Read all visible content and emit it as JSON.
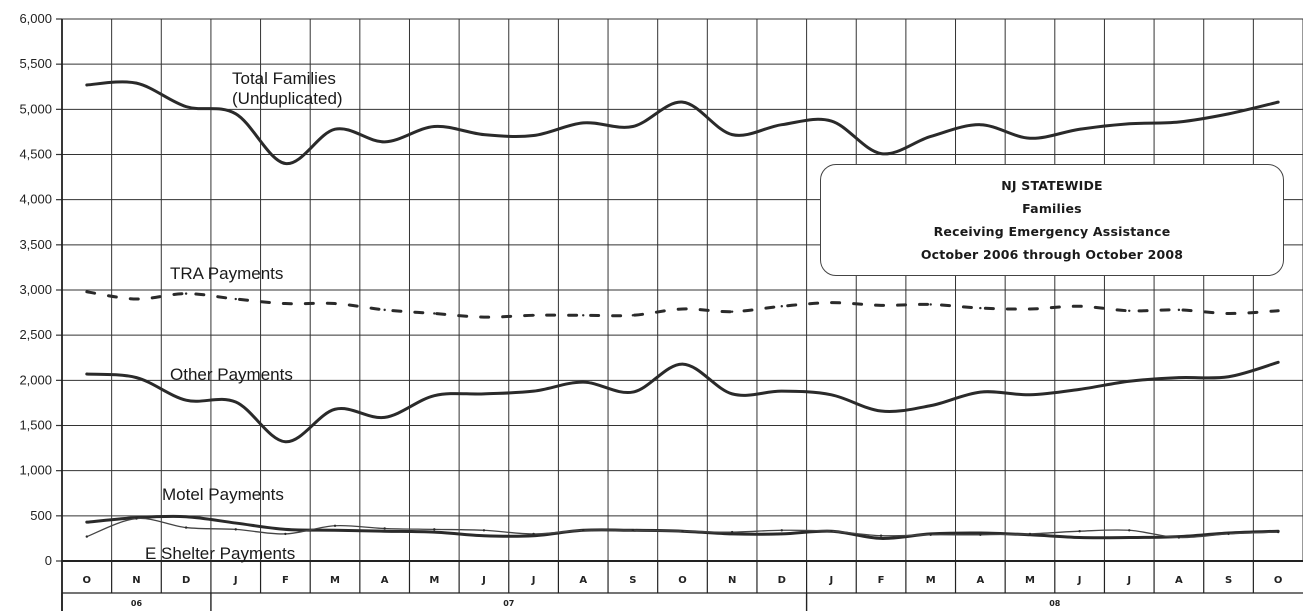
{
  "chart_data": {
    "type": "line",
    "title_lines": [
      "NJ STATEWIDE",
      "Families",
      "Receiving Emergency Assistance",
      "October 2006 through October 2008"
    ],
    "ylim": [
      0,
      6000
    ],
    "yticks": [
      "0",
      "500",
      "1,000",
      "1,500",
      "2,000",
      "2,500",
      "3,000",
      "3,500",
      "4,000",
      "4,500",
      "5,000",
      "5,500",
      "6,000"
    ],
    "categories": [
      "O",
      "N",
      "D",
      "J",
      "F",
      "M",
      "A",
      "M",
      "J",
      "J",
      "A",
      "S",
      "O",
      "N",
      "D",
      "J",
      "F",
      "M",
      "A",
      "M",
      "J",
      "J",
      "A",
      "S",
      "O"
    ],
    "years": [
      "06",
      "07",
      "08"
    ],
    "grid": true,
    "series": [
      {
        "name": "Total Families\n(Unduplicated)",
        "style": "solid",
        "values": [
          5270,
          5290,
          5030,
          4950,
          4400,
          4780,
          4640,
          4810,
          4720,
          4710,
          4850,
          4810,
          5080,
          4720,
          4830,
          4870,
          4510,
          4700,
          4830,
          4680,
          4780,
          4840,
          4860,
          4950,
          5080
        ]
      },
      {
        "name": "TRA Payments",
        "style": "dashed",
        "values": [
          2980,
          2900,
          2960,
          2900,
          2850,
          2850,
          2780,
          2740,
          2700,
          2720,
          2720,
          2720,
          2790,
          2760,
          2820,
          2860,
          2830,
          2840,
          2800,
          2790,
          2820,
          2770,
          2780,
          2740,
          2770
        ]
      },
      {
        "name": "Other Payments",
        "style": "solid",
        "values": [
          2070,
          2030,
          1780,
          1760,
          1320,
          1680,
          1590,
          1830,
          1850,
          1880,
          1980,
          1870,
          2180,
          1850,
          1880,
          1840,
          1660,
          1720,
          1870,
          1840,
          1900,
          1990,
          2030,
          2040,
          2200
        ]
      },
      {
        "name": "Motel Payments",
        "style": "solid",
        "values": [
          430,
          480,
          490,
          420,
          350,
          340,
          330,
          320,
          280,
          280,
          340,
          340,
          330,
          300,
          300,
          330,
          250,
          300,
          310,
          290,
          260,
          260,
          270,
          310,
          330
        ]
      },
      {
        "name": "E Shelter Payments",
        "style": "thin",
        "values": [
          270,
          470,
          370,
          350,
          300,
          390,
          360,
          350,
          340,
          300,
          340,
          340,
          330,
          320,
          340,
          330,
          280,
          290,
          290,
          300,
          330,
          340,
          260,
          300,
          320
        ]
      }
    ]
  }
}
